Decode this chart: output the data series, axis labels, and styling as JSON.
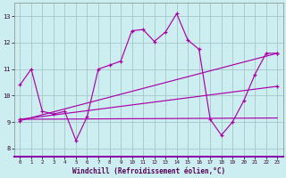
{
  "xlabel": "Windchill (Refroidissement éolien,°C)",
  "background_color": "#cceeff",
  "grid_color": "#aaddcc",
  "line_color": "#aa00aa",
  "axis_bg": "#ceeef0",
  "x_ticks": [
    0,
    1,
    2,
    3,
    4,
    5,
    6,
    7,
    8,
    9,
    10,
    11,
    12,
    13,
    14,
    15,
    16,
    17,
    18,
    19,
    20,
    21,
    22,
    23
  ],
  "y_ticks": [
    8,
    9,
    10,
    11,
    12,
    13
  ],
  "xlim": [
    -0.5,
    23.5
  ],
  "ylim": [
    7.7,
    13.5
  ],
  "line1_x": [
    0,
    1,
    2,
    3,
    4,
    5,
    6,
    7,
    8,
    9,
    10,
    11,
    12,
    13,
    14,
    15,
    16,
    17,
    18,
    19,
    20,
    21,
    22,
    23
  ],
  "line1_y": [
    10.4,
    11.0,
    9.4,
    9.3,
    9.4,
    8.3,
    9.2,
    11.0,
    11.15,
    11.3,
    12.45,
    12.5,
    12.05,
    12.4,
    13.1,
    12.1,
    11.75,
    9.1,
    8.5,
    9.0,
    9.8,
    10.8,
    11.6,
    11.6
  ],
  "line2_x": [
    0,
    23
  ],
  "line2_y": [
    9.05,
    11.6
  ],
  "line3_x": [
    0,
    23
  ],
  "line3_y": [
    9.1,
    10.35
  ],
  "line4_x": [
    0,
    23
  ],
  "line4_y": [
    9.1,
    9.15
  ]
}
